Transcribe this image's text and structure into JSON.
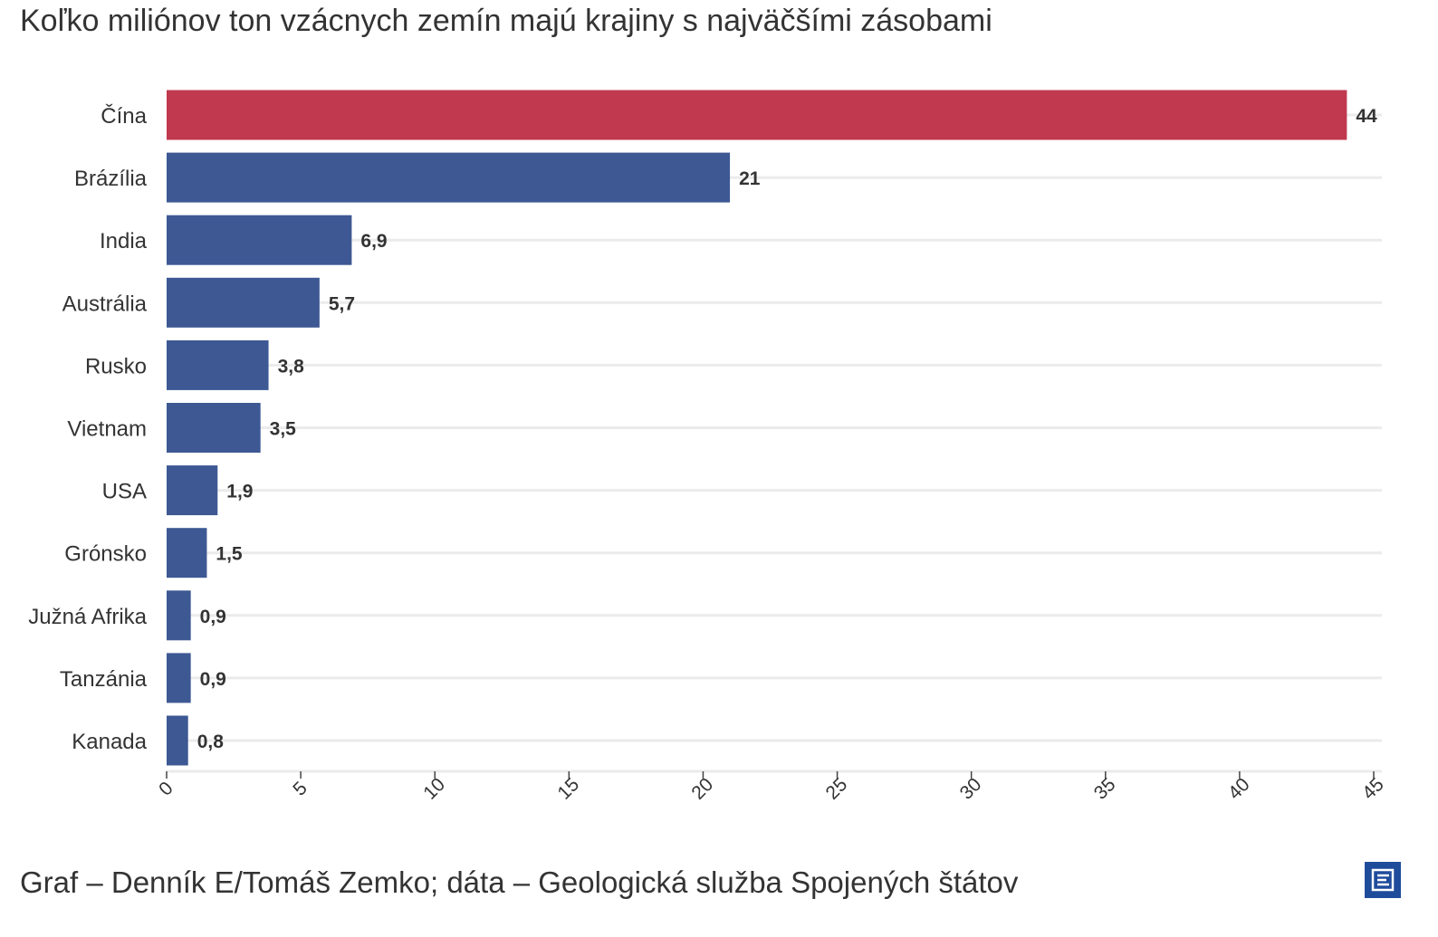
{
  "subtitle": "Koľko miliónov ton vzácnych zemín majú krajiny s najväčšími zásobami",
  "footer": "Graf – Denník E/Tomáš Zemko; dáta – Geologická služba Spojených štátov",
  "logo_icon": "denník-e-logo-icon",
  "colors": {
    "highlight": "#c0394f",
    "bar": "#3d5893",
    "grid": "#ebebeb",
    "text": "#333333",
    "logo": "#1f4b9b"
  },
  "chart_data": {
    "type": "bar",
    "orientation": "horizontal",
    "categories": [
      "Čína",
      "Brázília",
      "India",
      "Austrália",
      "Rusko",
      "Vietnam",
      "USA",
      "Grónsko",
      "Južná Afrika",
      "Tanzánia",
      "Kanada"
    ],
    "values": [
      44,
      21,
      6.9,
      5.7,
      3.8,
      3.5,
      1.9,
      1.5,
      0.9,
      0.9,
      0.8
    ],
    "value_labels": [
      "44",
      "21",
      "6,9",
      "5,7",
      "3,8",
      "3,5",
      "1,9",
      "1,5",
      "0,9",
      "0,9",
      "0,8"
    ],
    "highlight_index": 0,
    "xlim": [
      0,
      45
    ],
    "x_ticks": [
      0,
      5,
      10,
      15,
      20,
      25,
      30,
      35,
      40,
      45
    ],
    "x_tick_labels": [
      "0",
      "5",
      "10",
      "15",
      "20",
      "25",
      "30",
      "35",
      "40",
      "45"
    ],
    "grid": true,
    "xlabel": "",
    "ylabel": ""
  }
}
